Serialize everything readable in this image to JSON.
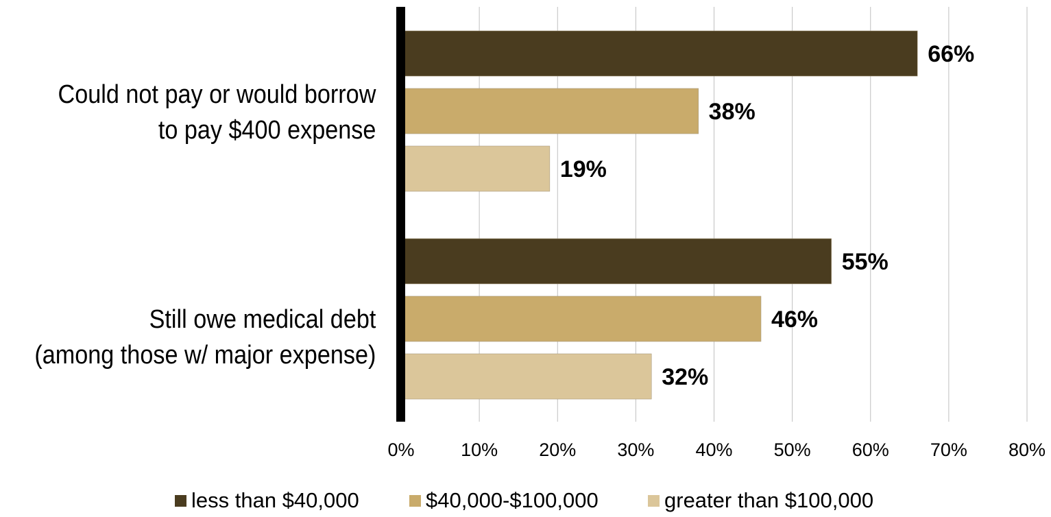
{
  "chart_data": {
    "type": "bar",
    "orientation": "horizontal",
    "categories": [
      [
        "Could not pay or would borrow",
        "to pay $400 expense"
      ],
      [
        "Still owe medical debt",
        "(among those w/ major expense)"
      ]
    ],
    "series": [
      {
        "name": "less than $40,000",
        "color": "#4a3c1f",
        "values": [
          66,
          55
        ],
        "labels": [
          "66%",
          "55%"
        ]
      },
      {
        "name": "$40,000-$100,000",
        "color": "#c9ab6b",
        "values": [
          38,
          46
        ],
        "labels": [
          "38%",
          "46%"
        ]
      },
      {
        "name": "greater than $100,000",
        "color": "#dbc69a",
        "values": [
          19,
          32
        ],
        "labels": [
          "19%",
          "32%"
        ]
      }
    ],
    "xlim": [
      0,
      80
    ],
    "xticks": [
      "0%",
      "10%",
      "20%",
      "30%",
      "40%",
      "50%",
      "60%",
      "70%",
      "80%"
    ],
    "grid": true,
    "legend_position": "bottom"
  }
}
